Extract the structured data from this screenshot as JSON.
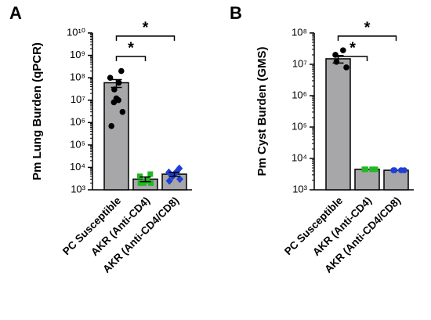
{
  "chart_data": [
    {
      "type": "bar",
      "panel": "A",
      "ylabel": "Pm Lung Burden (qPCR)",
      "log_y": true,
      "categories": [
        "PC Susceptible",
        "AKR (Anti-CD4)",
        "AKR (Anti-CD4/CD8)"
      ],
      "values": [
        60000000,
        3000,
        5000
      ],
      "errors": [
        23000000,
        700,
        1000
      ],
      "points": [
        [
          200000000,
          100000000,
          60000000,
          30000000,
          12000000,
          10000000,
          8000000,
          3000000,
          700000
        ],
        [
          5000,
          4000,
          3000,
          2500,
          2000,
          2000,
          2000
        ],
        [
          9000,
          6000,
          6000,
          5000,
          4000,
          3000,
          2500
        ]
      ],
      "color": "#a7a7aa",
      "point_colors": [
        "#000000",
        "#22b822",
        "#1f3fd6"
      ],
      "point_markers": [
        "circle",
        "square",
        "diamond"
      ],
      "ylim": [
        1000,
        10000000000
      ],
      "yticks": [
        {
          "value": 1000,
          "label": "10³"
        },
        {
          "value": 10000,
          "label": "10⁴"
        },
        {
          "value": 100000,
          "label": "10⁵"
        },
        {
          "value": 1000000,
          "label": "10⁶"
        },
        {
          "value": 10000000,
          "label": "10⁷"
        },
        {
          "value": 100000000,
          "label": "10⁸"
        },
        {
          "value": 1000000000,
          "label": "10⁹"
        },
        {
          "value": 10000000000,
          "label": "10¹⁰"
        }
      ],
      "brackets": [
        {
          "label": "*",
          "between": [
            0,
            1
          ]
        },
        {
          "label": "*",
          "between": [
            0,
            2
          ]
        }
      ]
    },
    {
      "type": "bar",
      "panel": "B",
      "ylabel": "Pm Cyst Burden (GMS)",
      "log_y": true,
      "categories": [
        "PC Susceptible",
        "AKR (Anti-CD4)",
        "AKR (Anti-CD4/CD8)"
      ],
      "values": [
        15000000,
        4500,
        4200
      ],
      "errors": [
        4000000,
        0,
        0
      ],
      "points": [
        [
          28000000,
          20000000,
          12000000,
          8000000
        ],
        [
          4500,
          4500,
          4500,
          4500
        ],
        [
          4200,
          4200,
          4200,
          4200
        ]
      ],
      "color": "#a7a7aa",
      "point_colors": [
        "#000000",
        "#22b822",
        "#1f3fd6"
      ],
      "point_markers": [
        "circle",
        "square",
        "circle"
      ],
      "ylim": [
        1000,
        100000000
      ],
      "yticks": [
        {
          "value": 1000,
          "label": "10³"
        },
        {
          "value": 10000,
          "label": "10⁴"
        },
        {
          "value": 100000,
          "label": "10⁵"
        },
        {
          "value": 1000000,
          "label": "10⁶"
        },
        {
          "value": 10000000,
          "label": "10⁷"
        },
        {
          "value": 100000000,
          "label": "10⁸"
        }
      ],
      "brackets": [
        {
          "label": "*",
          "between": [
            0,
            1
          ]
        },
        {
          "label": "*",
          "between": [
            0,
            2
          ]
        }
      ]
    }
  ]
}
